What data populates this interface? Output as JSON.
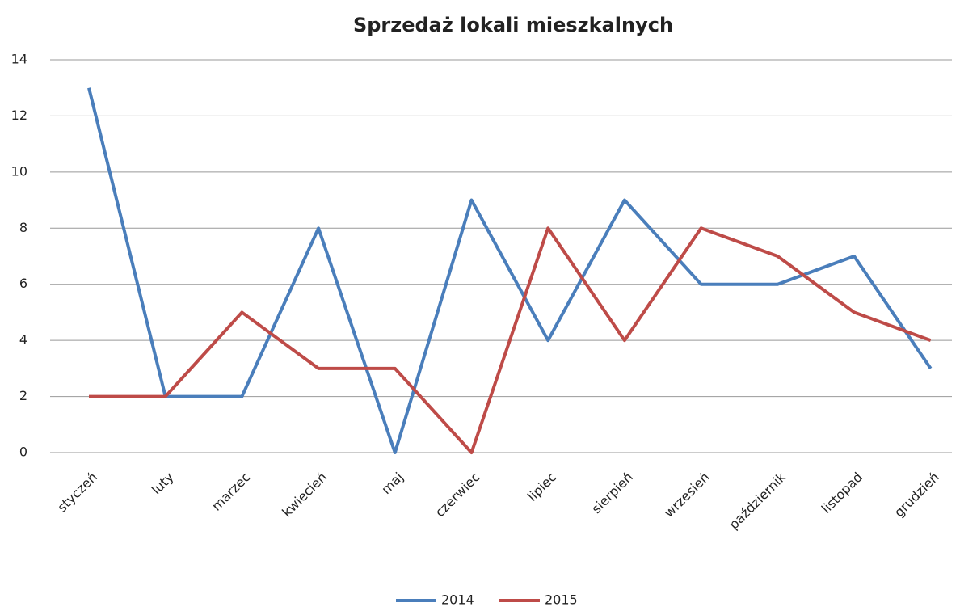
{
  "chart_data": {
    "type": "line",
    "title": "Sprzedaż lokali mieszkalnych",
    "categories": [
      "styczeń",
      "luty",
      "marzec",
      "kwiecień",
      "maj",
      "czerwiec",
      "lipiec",
      "sierpień",
      "wrzesień",
      "październik",
      "listopad",
      "grudzień"
    ],
    "series": [
      {
        "name": "2014",
        "color": "#4a7ebb",
        "values": [
          13,
          2,
          2,
          8,
          0,
          9,
          4,
          9,
          6,
          6,
          7,
          3
        ]
      },
      {
        "name": "2015",
        "color": "#be4b48",
        "values": [
          2,
          2,
          5,
          3,
          3,
          0,
          8,
          4,
          8,
          7,
          5,
          4
        ]
      }
    ],
    "ylim": [
      0,
      14
    ],
    "yticks": [
      0,
      2,
      4,
      6,
      8,
      10,
      12,
      14
    ],
    "grid": true,
    "legend": "bottom"
  }
}
